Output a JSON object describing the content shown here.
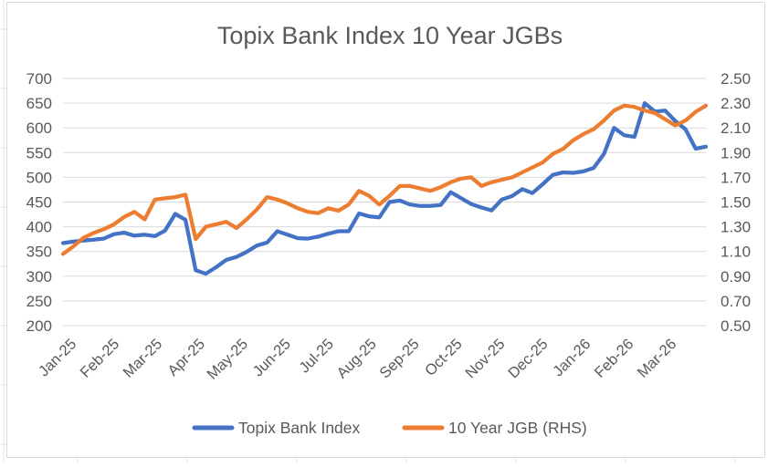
{
  "chart_data": {
    "type": "line",
    "title": "Topix Bank Index 10 Year JGBs",
    "x_tick_labels": [
      "Jan-25",
      "Feb-25",
      "Mar-25",
      "Apr-25",
      "May-25",
      "Jun-25",
      "Jul-25",
      "Aug-25",
      "Sep-25",
      "Oct-25",
      "Nov-25",
      "Dec-25",
      "Jan-26",
      "Feb-26",
      "Mar-26"
    ],
    "left_axis": {
      "min": 200,
      "max": 700,
      "step": 50,
      "tick_labels": [
        "700",
        "650",
        "600",
        "550",
        "500",
        "450",
        "400",
        "350",
        "300",
        "250",
        "200"
      ]
    },
    "right_axis": {
      "min": 0.5,
      "max": 2.5,
      "step": 0.2,
      "tick_labels": [
        "2.50",
        "2.30",
        "2.10",
        "1.90",
        "1.70",
        "1.50",
        "1.30",
        "1.10",
        "0.90",
        "0.70",
        "0.50"
      ]
    },
    "grid": "horizontal-only",
    "legend_position": "bottom",
    "series": [
      {
        "name": "Topix Bank Index",
        "axis": "left",
        "color": "#4472C4",
        "values": [
          367,
          370,
          372,
          374,
          376,
          385,
          388,
          382,
          384,
          381,
          392,
          426,
          414,
          312,
          305,
          318,
          333,
          339,
          349,
          362,
          368,
          391,
          384,
          377,
          376,
          380,
          386,
          391,
          391,
          427,
          421,
          419,
          450,
          453,
          445,
          442,
          442,
          444,
          470,
          458,
          446,
          439,
          433,
          455,
          462,
          476,
          468,
          486,
          505,
          510,
          509,
          512,
          519,
          547,
          600,
          585,
          582,
          650,
          633,
          635,
          614,
          597,
          558,
          562
        ]
      },
      {
        "name": "10 Year JGB (RHS)",
        "axis": "right",
        "color": "#ED7D31",
        "values": [
          1.08,
          1.14,
          1.21,
          1.25,
          1.28,
          1.32,
          1.38,
          1.42,
          1.36,
          1.52,
          1.53,
          1.54,
          1.56,
          1.2,
          1.3,
          1.32,
          1.34,
          1.29,
          1.36,
          1.44,
          1.54,
          1.52,
          1.49,
          1.45,
          1.42,
          1.41,
          1.45,
          1.43,
          1.48,
          1.59,
          1.55,
          1.48,
          1.55,
          1.63,
          1.63,
          1.61,
          1.59,
          1.62,
          1.66,
          1.69,
          1.7,
          1.63,
          1.66,
          1.68,
          1.7,
          1.74,
          1.78,
          1.82,
          1.89,
          1.93,
          2.0,
          2.05,
          2.09,
          2.16,
          2.24,
          2.28,
          2.27,
          2.24,
          2.22,
          2.17,
          2.12,
          2.16,
          2.23,
          2.28
        ]
      }
    ],
    "colors": {
      "gridline": "#D9D9D9",
      "axis_text": "#595959",
      "title_text": "#595959",
      "chart_border": "#D9D9D9",
      "background": "#FFFFFF"
    }
  }
}
